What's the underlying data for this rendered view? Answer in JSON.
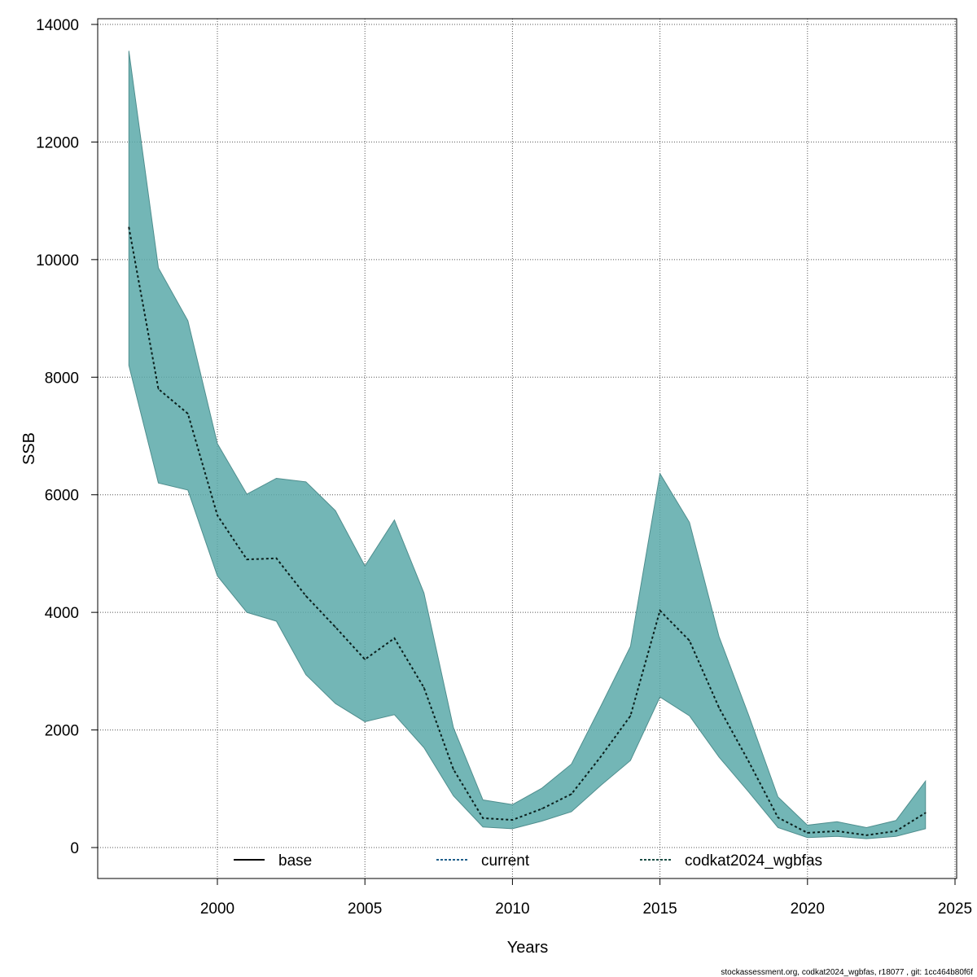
{
  "chart_data": {
    "type": "area",
    "xlabel": "Years",
    "ylabel": "SSB",
    "xlim": [
      1993,
      2025
    ],
    "ylim": [
      -500,
      14000
    ],
    "x_ticks": [
      2000,
      2005,
      2010,
      2015,
      2020,
      2025
    ],
    "y_ticks": [
      0,
      2000,
      4000,
      6000,
      8000,
      10000,
      12000,
      14000
    ],
    "grid": true,
    "legend_position": "bottom",
    "legend": [
      {
        "label": "base",
        "color": "#000000",
        "dash": "solid"
      },
      {
        "label": "current",
        "color": "#1f5f8b",
        "dash": "dotted"
      },
      {
        "label": "codkat2024_wgbfas",
        "color": "#1a4d44",
        "dash": "dotted"
      }
    ],
    "band_color": "#5aa9a9",
    "x": [
      1997,
      1998,
      1999,
      2000,
      2001,
      2002,
      2003,
      2004,
      2005,
      2006,
      2007,
      2008,
      2009,
      2010,
      2011,
      2012,
      2013,
      2014,
      2015,
      2016,
      2017,
      2018,
      2019,
      2020,
      2021,
      2022,
      2023,
      2024
    ],
    "series": [
      {
        "name": "codkat2024_wgbfas",
        "estimate": [
          10550,
          7800,
          7380,
          5650,
          4900,
          4920,
          4280,
          3750,
          3200,
          3560,
          2720,
          1330,
          500,
          470,
          660,
          910,
          1550,
          2240,
          4030,
          3520,
          2380,
          1470,
          510,
          250,
          280,
          210,
          280,
          590
        ],
        "lower": [
          8200,
          6200,
          6080,
          4620,
          4000,
          3850,
          2940,
          2450,
          2140,
          2260,
          1700,
          880,
          350,
          320,
          450,
          610,
          1060,
          1480,
          2560,
          2240,
          1540,
          950,
          340,
          170,
          190,
          150,
          190,
          320
        ],
        "upper": [
          13550,
          9860,
          8960,
          6870,
          6010,
          6280,
          6220,
          5730,
          4790,
          5570,
          4330,
          2040,
          810,
          730,
          1010,
          1420,
          2410,
          3420,
          6360,
          5530,
          3590,
          2260,
          860,
          380,
          440,
          340,
          460,
          1130
        ]
      }
    ]
  },
  "footer": "stockassessment.org, codkat2024_wgbfas, r18077 , git: 1cc464b80f6f"
}
